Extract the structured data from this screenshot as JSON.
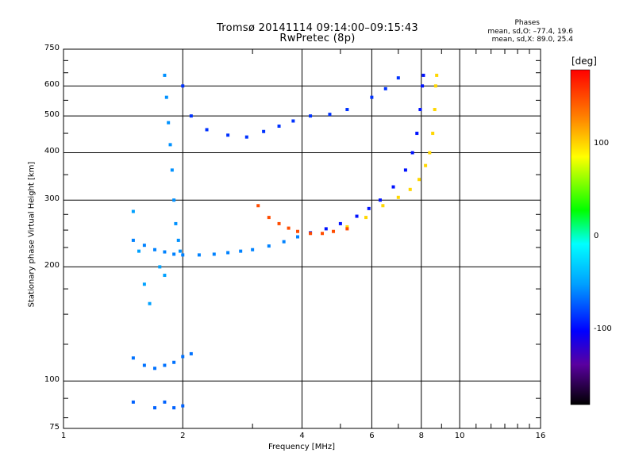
{
  "title": "Tromsø 20141114 09:14:00–09:15:43",
  "subtitle": "RwPretec (8p)",
  "stats": {
    "heading": "Phases",
    "line_o": "mean, sd,O: –77.4, 19.6",
    "line_x": "mean, sd,X:  89.0, 25.4"
  },
  "chart_data": {
    "type": "scatter",
    "title": "Tromsø 20141114 09:14:00–09:15:43",
    "subtitle": "RwPretec (8p)",
    "xlabel": "Frequency [MHz]",
    "ylabel": "Stationary phase Virtual Height [km]",
    "x_scale": "log",
    "y_scale": "log",
    "xlim": [
      1,
      16
    ],
    "ylim": [
      75,
      750
    ],
    "x_ticks": [
      1,
      2,
      4,
      6,
      8,
      10,
      16
    ],
    "y_ticks": [
      75,
      100,
      200,
      300,
      400,
      500,
      600,
      750
    ],
    "grid": true,
    "colorbar": {
      "label": "[deg]",
      "range": [
        -180,
        180
      ],
      "ticks": [
        100,
        0,
        -100
      ],
      "colors": [
        "#000000",
        "#5a00a0",
        "#0000ff",
        "#00a0ff",
        "#00ffff",
        "#00ff00",
        "#ffff00",
        "#ff8000",
        "#ff0000"
      ]
    },
    "series": [
      {
        "points": [
          [
            1.5,
            235
          ],
          [
            1.6,
            228
          ],
          [
            1.7,
            222
          ],
          [
            1.8,
            219
          ],
          [
            1.9,
            216
          ],
          [
            2.0,
            215
          ],
          [
            2.2,
            215
          ],
          [
            2.4,
            216
          ],
          [
            2.6,
            218
          ],
          [
            2.8,
            220
          ],
          [
            3.0,
            222
          ],
          [
            3.3,
            227
          ],
          [
            3.6,
            233
          ],
          [
            3.9,
            240
          ]
        ],
        "phase": -60
      },
      {
        "points": [
          [
            4.2,
            246
          ],
          [
            4.6,
            252
          ],
          [
            5.0,
            260
          ],
          [
            5.5,
            272
          ],
          [
            5.9,
            285
          ],
          [
            6.3,
            300
          ],
          [
            6.8,
            325
          ],
          [
            7.3,
            360
          ],
          [
            7.6,
            400
          ],
          [
            7.8,
            450
          ],
          [
            7.95,
            520
          ],
          [
            8.05,
            600
          ],
          [
            8.1,
            640
          ]
        ],
        "phase": -95
      },
      {
        "points": [
          [
            2.0,
            600
          ],
          [
            2.1,
            500
          ],
          [
            2.3,
            460
          ],
          [
            2.6,
            445
          ],
          [
            2.9,
            440
          ],
          [
            3.2,
            455
          ],
          [
            3.5,
            470
          ],
          [
            3.8,
            485
          ],
          [
            4.2,
            500
          ],
          [
            4.7,
            505
          ],
          [
            5.2,
            520
          ],
          [
            6.0,
            560
          ],
          [
            6.5,
            590
          ],
          [
            7.0,
            630
          ]
        ],
        "phase": -85
      },
      {
        "points": [
          [
            5.2,
            255
          ],
          [
            5.8,
            270
          ],
          [
            6.4,
            290
          ],
          [
            7.0,
            305
          ],
          [
            7.5,
            320
          ],
          [
            7.9,
            340
          ],
          [
            8.2,
            370
          ],
          [
            8.4,
            400
          ],
          [
            8.55,
            450
          ],
          [
            8.65,
            520
          ],
          [
            8.7,
            600
          ],
          [
            8.75,
            640
          ]
        ],
        "phase": 100
      },
      {
        "points": [
          [
            3.1,
            290
          ],
          [
            3.3,
            270
          ],
          [
            3.5,
            260
          ],
          [
            3.7,
            253
          ],
          [
            3.9,
            248
          ],
          [
            4.2,
            245
          ],
          [
            4.5,
            245
          ],
          [
            4.8,
            248
          ],
          [
            5.2,
            252
          ]
        ],
        "phase": 150
      },
      {
        "points": [
          [
            1.8,
            640
          ],
          [
            1.82,
            560
          ],
          [
            1.84,
            480
          ],
          [
            1.86,
            420
          ],
          [
            1.88,
            360
          ],
          [
            1.9,
            300
          ],
          [
            1.92,
            260
          ],
          [
            1.95,
            235
          ],
          [
            1.97,
            220
          ]
        ],
        "phase": -55
      },
      {
        "points": [
          [
            1.5,
            280
          ],
          [
            1.55,
            220
          ],
          [
            1.6,
            180
          ],
          [
            1.65,
            160
          ],
          [
            1.75,
            200
          ],
          [
            1.8,
            190
          ]
        ],
        "phase": -50
      },
      {
        "points": [
          [
            1.5,
            115
          ],
          [
            1.6,
            110
          ],
          [
            1.7,
            108
          ],
          [
            1.8,
            110
          ],
          [
            1.9,
            112
          ],
          [
            2.0,
            116
          ],
          [
            2.1,
            118
          ]
        ],
        "phase": -65
      },
      {
        "points": [
          [
            1.5,
            88
          ],
          [
            1.7,
            85
          ],
          [
            1.8,
            88
          ],
          [
            1.9,
            85
          ],
          [
            2.0,
            86
          ]
        ],
        "phase": -70
      }
    ]
  }
}
